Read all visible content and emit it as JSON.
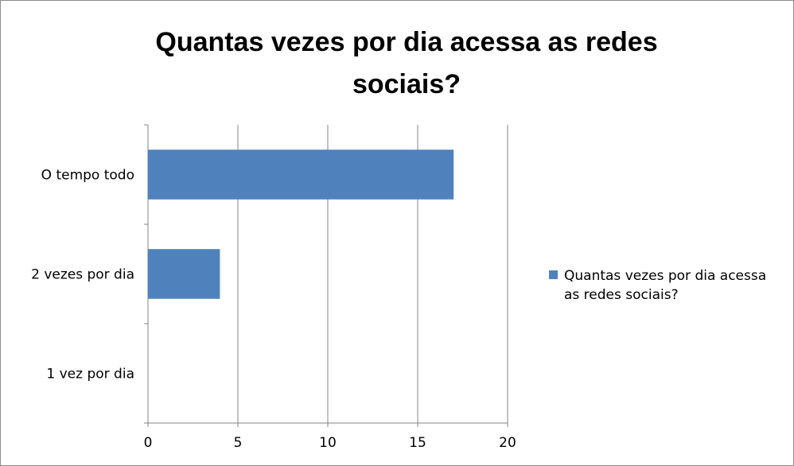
{
  "chart_data": {
    "type": "bar",
    "orientation": "horizontal",
    "title": "Quantas vezes por dia acessa as redes sociais?",
    "categories": [
      "O tempo todo",
      "2 vezes por dia",
      "1 vez por dia"
    ],
    "series": [
      {
        "name": "Quantas vezes por dia acessa as redes sociais?",
        "values": [
          17,
          4,
          0
        ],
        "color": "#4f81bd"
      }
    ],
    "xlim": [
      0,
      20
    ],
    "xticks": [
      0,
      5,
      10,
      15,
      20
    ],
    "grid": true,
    "legend": "right"
  }
}
